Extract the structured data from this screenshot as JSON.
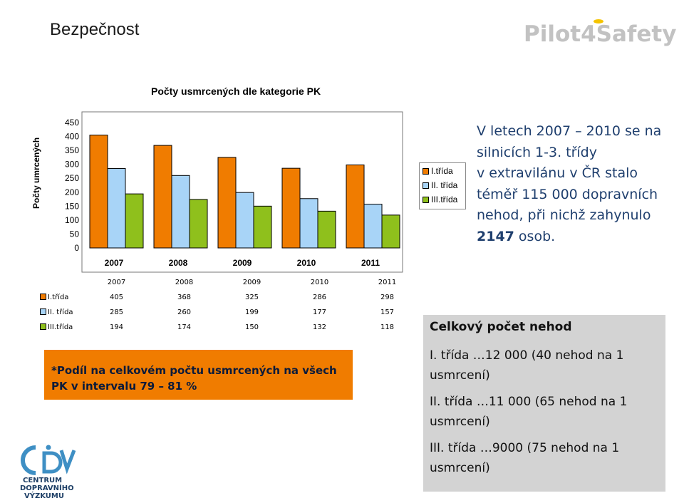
{
  "header": {
    "title": "Bezpečnost",
    "brand_logo_text": "Pilot4Safety"
  },
  "chart_data": {
    "type": "bar",
    "title": "Počty usmrcených dle kategorie PK",
    "ylabel": "Počty umrcených",
    "xlabel": "",
    "categories": [
      "2007",
      "2008",
      "2009",
      "2010",
      "2011"
    ],
    "series": [
      {
        "name": "I.třída",
        "values": [
          405,
          368,
          325,
          286,
          298
        ],
        "color": "#f07c00"
      },
      {
        "name": "II. třída",
        "values": [
          285,
          260,
          199,
          177,
          157
        ],
        "color": "#a8d4f7"
      },
      {
        "name": "III.třída",
        "values": [
          194,
          174,
          150,
          132,
          118
        ],
        "color": "#8fc01c"
      }
    ],
    "ylim": [
      0,
      450
    ],
    "yticks": [
      0,
      50,
      100,
      150,
      200,
      250,
      300,
      350,
      400,
      450
    ],
    "grid": false,
    "legend_position": "right"
  },
  "data_table": {
    "columns": [
      "2007",
      "2008",
      "2009",
      "2010",
      "2011"
    ],
    "rows": [
      {
        "label": "I.třída",
        "values": [
          "405",
          "368",
          "325",
          "286",
          "298"
        ]
      },
      {
        "label": "II. třída",
        "values": [
          "285",
          "260",
          "199",
          "177",
          "157"
        ]
      },
      {
        "label": "III.třída",
        "values": [
          "194",
          "174",
          "150",
          "132",
          "118"
        ]
      }
    ]
  },
  "side_text": {
    "line1": "V letech 2007 – 2010 se na",
    "line2": "silnicích 1-3. třídy",
    "line3": "v extravilánu v ČR stalo",
    "line4": "téměř 115 000 dopravních",
    "line5": "nehod, při nichž zahynulo",
    "strong": "2147",
    "line6_rest": " osob."
  },
  "orange_box": {
    "line1": "*Podíl na celkovém počtu usmrcených na všech",
    "line2": "PK v intervalu 79 – 81 %"
  },
  "summary_box": {
    "title": "Celkový počet nehod",
    "lines": [
      "I. třída …12 000 (40 nehod na 1 usmrcení)",
      "II. třída …11 000 (65 nehod na 1 usmrcení)",
      "III. třída …9000 (75 nehod na 1 usmrcení)"
    ]
  },
  "footer_logo": {
    "line1": "CENTRUM",
    "line2": "DOPRAVNÍHO",
    "line3": "VÝZKUMU"
  }
}
